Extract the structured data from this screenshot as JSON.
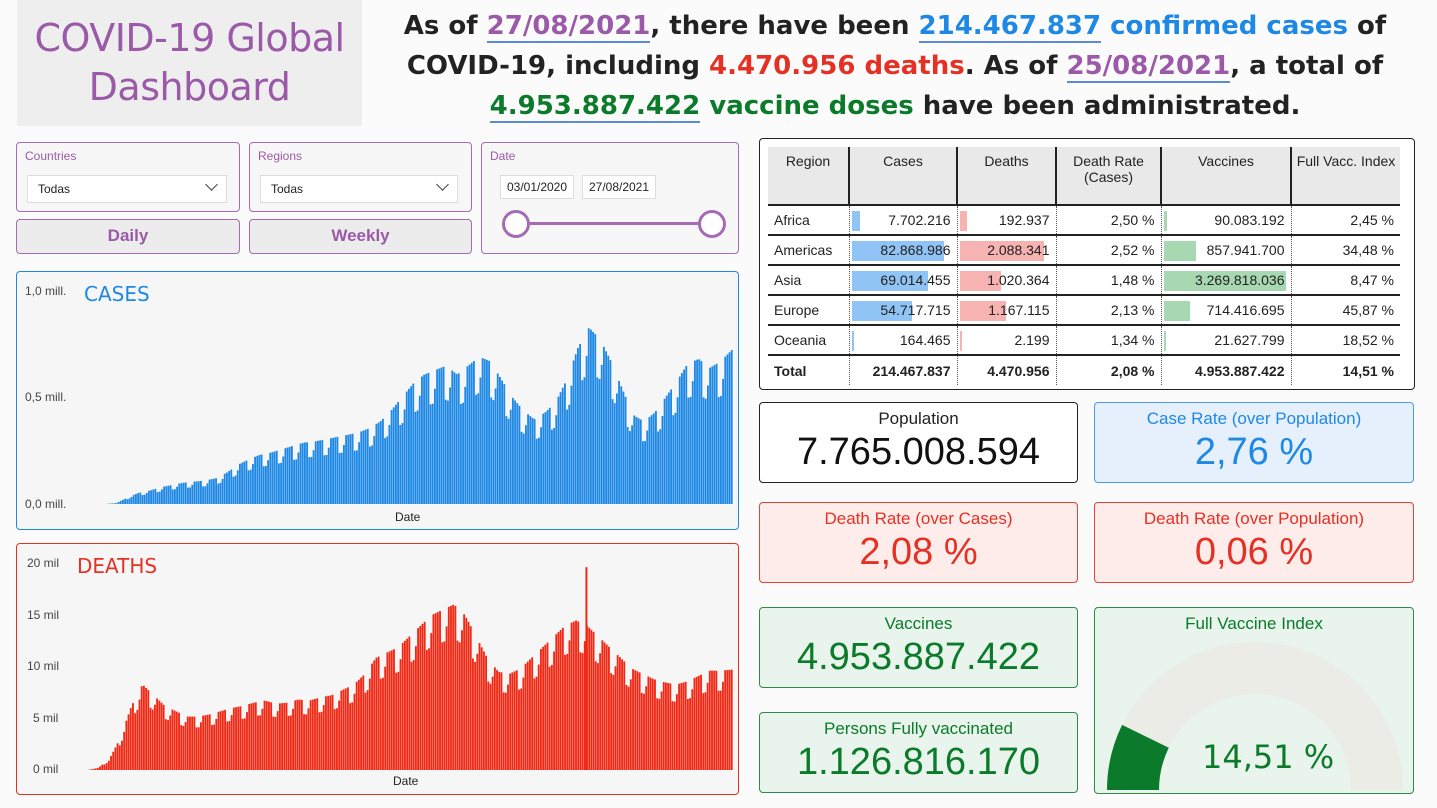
{
  "title": {
    "line1": "COVID-19 Global",
    "line2": "Dashboard"
  },
  "headline": {
    "t1": "As of ",
    "date1": "27/08/2021",
    "t2": ", there have been ",
    "cases_num": "214.467.837",
    "cases_word": " confirmed cases",
    "t3": " of",
    "t4": "COVID-19, including ",
    "deaths": "4.470.956 deaths",
    "t5": ". As of ",
    "date2": "25/08/2021",
    "t6": ", a total of",
    "vax_num": "4.953.887.422",
    "vax_word": " vaccine doses",
    "t7": " have been administrated."
  },
  "filters": {
    "countries": {
      "label": "Countries",
      "value": "Todas"
    },
    "regions": {
      "label": "Regions",
      "value": "Todas"
    },
    "date": {
      "label": "Date",
      "start": "03/01/2020",
      "end": "27/08/2021"
    },
    "daily_label": "Daily",
    "weekly_label": "Weekly"
  },
  "colors": {
    "cases": "#1e88e5",
    "deaths": "#f02814",
    "vaccines": "#0b7a2a",
    "accent": "#9b5aa8"
  },
  "chart_data": [
    {
      "type": "bar",
      "title": "CASES",
      "xlabel": "Date",
      "yticks": [
        "1,0 mill.",
        "0,5 mill.",
        "0,0 mill."
      ],
      "ylim": [
        0,
        1000000
      ],
      "x_range": [
        "03/01/2020",
        "27/08/2021"
      ],
      "trend_y": [
        0,
        0,
        0,
        5000,
        30000,
        50000,
        60000,
        75000,
        85000,
        95000,
        100000,
        105000,
        115000,
        140000,
        175000,
        200000,
        220000,
        230000,
        245000,
        260000,
        275000,
        280000,
        290000,
        300000,
        310000,
        320000,
        340000,
        370000,
        420000,
        480000,
        540000,
        580000,
        600000,
        620000,
        580000,
        620000,
        660000,
        640000,
        560000,
        480000,
        420000,
        380000,
        410000,
        460000,
        560000,
        700000,
        790000,
        740000,
        640000,
        520000,
        400000,
        370000,
        410000,
        480000,
        550000,
        630000,
        650000,
        610000,
        640000,
        690000
      ],
      "weekly_amplitude": 0.22
    },
    {
      "type": "bar",
      "title": "DEATHS",
      "xlabel": "Date",
      "yticks": [
        "20 mil",
        "15 mil",
        "10 mil",
        "5 mil",
        "0 mil"
      ],
      "ylim": [
        0,
        20000
      ],
      "x_range": [
        "03/01/2020",
        "27/08/2021"
      ],
      "trend_y": [
        0,
        0,
        200,
        1000,
        3000,
        6000,
        8000,
        7000,
        6000,
        5500,
        5000,
        5000,
        5200,
        5500,
        5800,
        6000,
        6300,
        6500,
        6200,
        6300,
        6600,
        6500,
        6800,
        7000,
        7500,
        8000,
        9000,
        10500,
        11000,
        11500,
        12500,
        13500,
        14500,
        15000,
        15500,
        14500,
        12500,
        10500,
        9200,
        9000,
        9500,
        10500,
        11500,
        12500,
        13500,
        14000,
        13500,
        12500,
        11500,
        10500,
        9500,
        9000,
        8500,
        8200,
        8000,
        8300,
        8800,
        9300,
        9300,
        9400
      ],
      "weekly_amplitude": 0.18,
      "spike": {
        "x": "14/04/2021",
        "y": 19500
      }
    }
  ],
  "table": {
    "headers": [
      "Region",
      "Cases",
      "Deaths",
      "Death Rate (Cases)",
      "Vaccines",
      "Full Vacc. Index"
    ],
    "rows": [
      {
        "region": "Africa",
        "cases": "7.702.216",
        "deaths": "192.937",
        "rate": "2,50 %",
        "vaccines": "90.083.192",
        "index": "2,45 %",
        "cases_val": 7702216,
        "deaths_val": 192937,
        "vaccines_val": 90083192
      },
      {
        "region": "Americas",
        "cases": "82.868.986",
        "deaths": "2.088.341",
        "rate": "2,52 %",
        "vaccines": "857.941.700",
        "index": "34,48 %",
        "cases_val": 82868986,
        "deaths_val": 2088341,
        "vaccines_val": 857941700
      },
      {
        "region": "Asia",
        "cases": "69.014.455",
        "deaths": "1.020.364",
        "rate": "1,48 %",
        "vaccines": "3.269.818.036",
        "index": "8,47 %",
        "cases_val": 69014455,
        "deaths_val": 1020364,
        "vaccines_val": 3269818036
      },
      {
        "region": "Europe",
        "cases": "54.717.715",
        "deaths": "1.167.115",
        "rate": "2,13 %",
        "vaccines": "714.416.695",
        "index": "45,87 %",
        "cases_val": 54717715,
        "deaths_val": 1167115,
        "vaccines_val": 714416695
      },
      {
        "region": "Oceania",
        "cases": "164.465",
        "deaths": "2.199",
        "rate": "1,34 %",
        "vaccines": "21.627.799",
        "index": "18,52 %",
        "cases_val": 164465,
        "deaths_val": 2199,
        "vaccines_val": 21627799
      }
    ],
    "total": {
      "region": "Total",
      "cases": "214.467.837",
      "deaths": "4.470.956",
      "rate": "2,08 %",
      "vaccines": "4.953.887.422",
      "index": "14,51 %"
    }
  },
  "cards": {
    "population": {
      "label": "Population",
      "value": "7.765.008.594"
    },
    "case_rate": {
      "label": "Case Rate (over Population)",
      "value": "2,76 %"
    },
    "death_rate_cases": {
      "label": "Death Rate (over Cases)",
      "value": "2,08 %"
    },
    "death_rate_pop": {
      "label": "Death Rate (over Population)",
      "value": "0,06 %"
    },
    "vaccines": {
      "label": "Vaccines",
      "value": "4.953.887.422"
    },
    "fully_vaccinated": {
      "label": "Persons Fully vaccinated",
      "value": "1.126.816.170"
    },
    "full_index": {
      "label": "Full Vaccine Index",
      "value": "14,51 %",
      "fraction": 0.1451
    }
  }
}
